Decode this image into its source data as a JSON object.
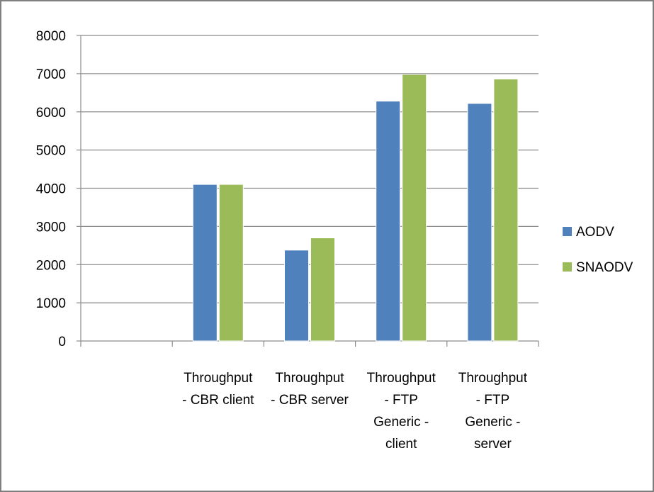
{
  "chart_data": {
    "type": "bar",
    "categories": [
      "",
      "Throughput - CBR client",
      "Throughput - CBR server",
      "Throughput - FTP Generic - client",
      "Throughput - FTP Generic - server"
    ],
    "category_label_lines": [
      [],
      [
        "Throughput",
        "- CBR client"
      ],
      [
        "Throughput",
        "- CBR server"
      ],
      [
        "Throughput",
        "- FTP",
        "Generic -",
        "client"
      ],
      [
        "Throughput",
        "- FTP",
        "Generic -",
        "server"
      ]
    ],
    "series": [
      {
        "name": "AODV",
        "color": "#4f81bd",
        "values": [
          0,
          4100,
          2380,
          6280,
          6220
        ]
      },
      {
        "name": "SNAODV",
        "color": "#9bbb59",
        "values": [
          0,
          4100,
          2700,
          6980,
          6860
        ]
      }
    ],
    "ylim": [
      0,
      8000
    ],
    "ytick_step": 1000,
    "yticks": [
      "0",
      "1000",
      "2000",
      "3000",
      "4000",
      "5000",
      "6000",
      "7000",
      "8000"
    ],
    "grid": true,
    "legend_position": "right",
    "title": "",
    "xlabel": "",
    "ylabel": ""
  }
}
